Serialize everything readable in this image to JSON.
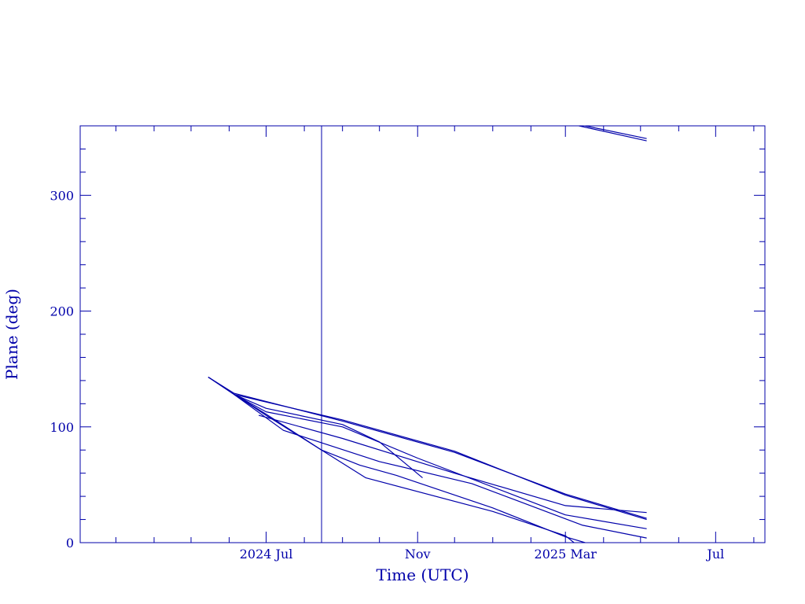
{
  "chart_data": {
    "type": "line",
    "xlabel": "Time (UTC)",
    "ylabel": "Plane (deg)",
    "ylim": [
      0,
      360
    ],
    "xlim": [
      "2024-02-01",
      "2025-08-10"
    ],
    "x_ticks": [
      {
        "date": "2024-07-01",
        "label": "2024 Jul"
      },
      {
        "date": "2024-11-01",
        "label": "Nov"
      },
      {
        "date": "2025-03-01",
        "label": "2025 Mar"
      },
      {
        "date": "2025-07-01",
        "label": "Jul"
      }
    ],
    "y_ticks": [
      {
        "value": 0,
        "label": "0"
      },
      {
        "value": 100,
        "label": "100"
      },
      {
        "value": 200,
        "label": "200"
      },
      {
        "value": 300,
        "label": "300"
      }
    ],
    "marker_line": {
      "date": "2024-08-15"
    },
    "color": "#0000aa",
    "series": [
      {
        "points": [
          [
            "2024-05-15",
            143
          ],
          [
            "2024-06-05",
            129
          ],
          [
            "2024-09-01",
            105
          ],
          [
            "2024-12-01",
            78
          ],
          [
            "2025-03-01",
            42
          ],
          [
            "2025-05-06",
            21
          ]
        ]
      },
      {
        "points": [
          [
            "2024-05-15",
            143
          ],
          [
            "2024-06-05",
            128
          ],
          [
            "2024-09-01",
            106
          ],
          [
            "2024-12-01",
            79
          ],
          [
            "2025-03-01",
            41
          ],
          [
            "2025-05-06",
            20
          ]
        ]
      },
      {
        "points": [
          [
            "2024-06-05",
            128
          ],
          [
            "2024-07-01",
            113
          ],
          [
            "2024-09-01",
            100
          ],
          [
            "2024-11-01",
            73
          ],
          [
            "2025-03-01",
            24
          ],
          [
            "2025-05-06",
            12
          ]
        ]
      },
      {
        "points": [
          [
            "2024-06-05",
            128
          ],
          [
            "2024-07-15",
            97
          ],
          [
            "2024-10-01",
            70
          ],
          [
            "2024-12-15",
            51
          ],
          [
            "2025-03-15",
            15
          ],
          [
            "2025-05-06",
            4
          ]
        ]
      },
      {
        "points": [
          [
            "2024-06-05",
            128
          ],
          [
            "2024-07-01",
            116
          ],
          [
            "2024-09-01",
            102
          ],
          [
            "2024-10-01",
            87
          ],
          [
            "2024-11-05",
            56
          ]
        ]
      },
      {
        "points": [
          [
            "2024-06-05",
            128
          ],
          [
            "2024-07-01",
            111
          ],
          [
            "2024-08-15",
            80
          ],
          [
            "2024-09-15",
            67
          ],
          [
            "2024-10-15",
            58
          ],
          [
            "2025-01-01",
            30
          ],
          [
            "2025-03-01",
            5
          ],
          [
            "2025-03-17",
            0
          ]
        ]
      },
      {
        "points": [
          [
            "2024-05-15",
            143
          ],
          [
            "2024-07-01",
            110
          ],
          [
            "2024-08-15",
            80
          ],
          [
            "2024-09-20",
            56
          ],
          [
            "2025-01-01",
            27
          ],
          [
            "2025-03-01",
            6
          ],
          [
            "2025-03-08",
            0
          ]
        ]
      },
      {
        "points": [
          [
            "2024-06-25",
            110
          ],
          [
            "2024-09-01",
            90
          ],
          [
            "2024-12-01",
            60
          ],
          [
            "2025-03-01",
            32
          ],
          [
            "2025-05-06",
            26
          ]
        ]
      },
      {
        "points": [
          [
            "2025-03-12",
            360
          ],
          [
            "2025-05-06",
            347
          ]
        ]
      },
      {
        "points": [
          [
            "2025-03-17",
            360
          ],
          [
            "2025-05-06",
            349
          ]
        ]
      }
    ]
  }
}
